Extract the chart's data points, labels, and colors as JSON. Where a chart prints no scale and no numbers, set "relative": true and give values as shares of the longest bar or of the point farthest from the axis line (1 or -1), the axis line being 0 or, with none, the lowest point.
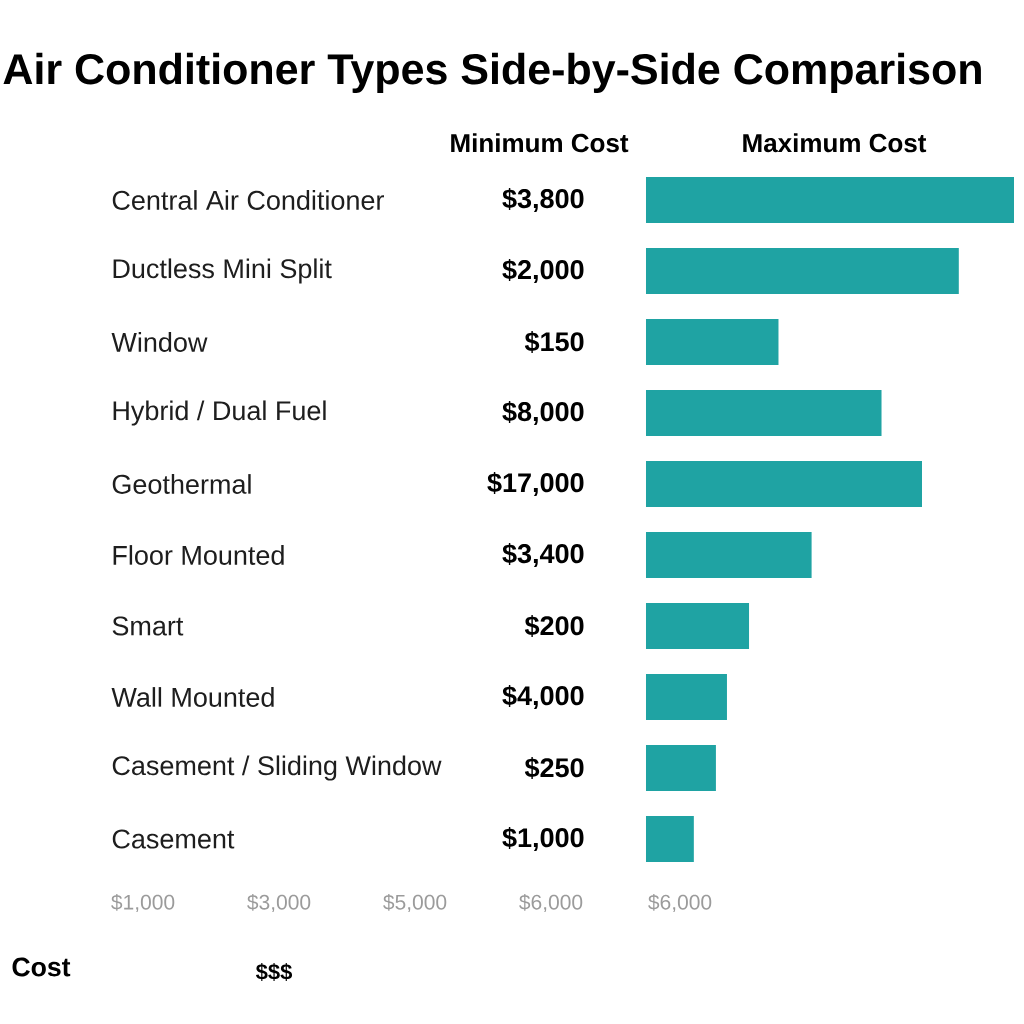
{
  "chart_data": [
    {
      "type": "bar",
      "orientation": "horizontal",
      "relative": true,
      "title": "Air Conditioner Types Side-by-Side Comparison",
      "xlabel": "Maximum Cost",
      "categories": [
        "Central Air Conditioner",
        "Ductless Mini Split",
        "Window",
        "Hybrid / Dual Fuel",
        "Geothermal",
        "Floor Mounted",
        "Smart",
        "Wall Mounted",
        "Casement / Sliding Window",
        "Casement"
      ],
      "values": [
        1,
        0.85,
        0.36,
        0.64,
        0.75,
        0.45,
        0.28,
        0.22,
        0.19,
        0.13
      ],
      "color": "#1fa3a3",
      "annotations": [
        "$1,000",
        "$3,000",
        "$5,000",
        "$6,000",
        "$6,000"
      ]
    },
    {
      "type": "other",
      "xlabel": "Minimum Cost",
      "value_labels": [
        "$3,800",
        "$2,000",
        "$150",
        "$8,000",
        "$17,000",
        "$3,400",
        "$200",
        "$4,000",
        "$250",
        "$1,000"
      ],
      "annotations": [
        "Cost",
        "$$$"
      ]
    }
  ]
}
